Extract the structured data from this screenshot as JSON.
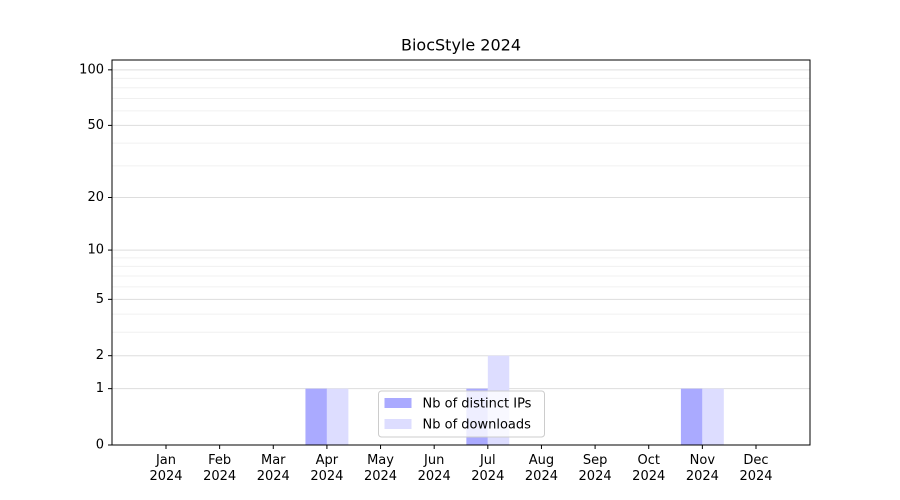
{
  "chart_data": {
    "type": "bar",
    "title": "BiocStyle 2024",
    "categories": [
      "Jan\n2024",
      "Feb\n2024",
      "Mar\n2024",
      "Apr\n2024",
      "May\n2024",
      "Jun\n2024",
      "Jul\n2024",
      "Aug\n2024",
      "Sep\n2024",
      "Oct\n2024",
      "Nov\n2024",
      "Dec\n2024"
    ],
    "series": [
      {
        "name": "Nb of distinct IPs",
        "color": "#aaaaff",
        "values": [
          0,
          0,
          0,
          1,
          0,
          0,
          1,
          0,
          0,
          0,
          1,
          0
        ]
      },
      {
        "name": "Nb of downloads",
        "color": "#ddddff",
        "values": [
          0,
          0,
          0,
          1,
          0,
          0,
          2,
          0,
          0,
          0,
          1,
          0
        ]
      }
    ],
    "yscale": "log1p",
    "ylim": [
      0,
      113
    ],
    "yticks": [
      0,
      1,
      2,
      5,
      10,
      20,
      50,
      100
    ],
    "minor_yticks": [
      3,
      4,
      6,
      7,
      8,
      9,
      30,
      40,
      60,
      70,
      80,
      90
    ],
    "grid": true,
    "legend": "lower center"
  }
}
